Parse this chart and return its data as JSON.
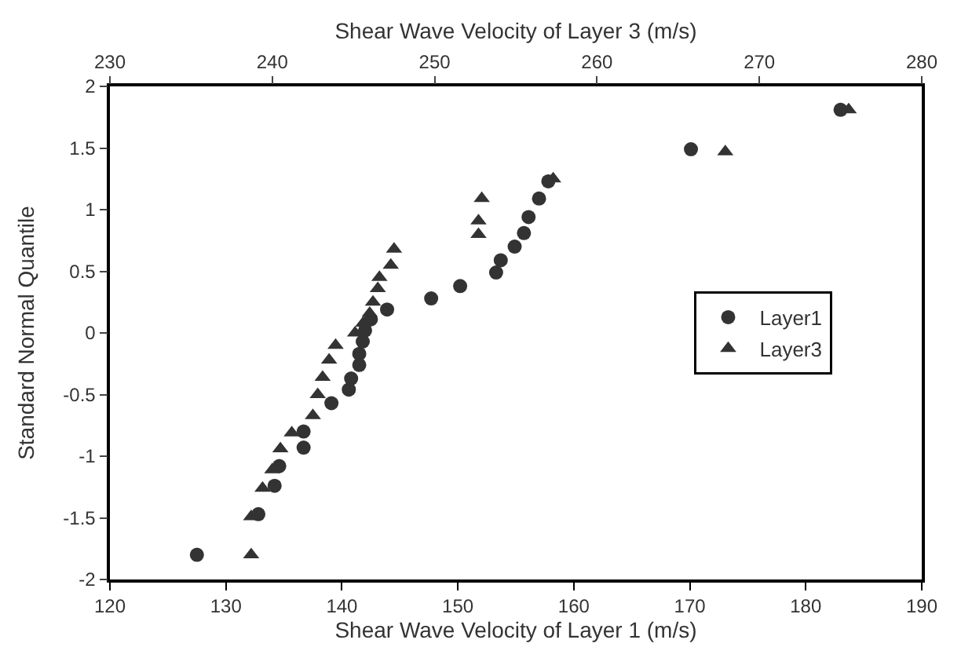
{
  "chart_data": {
    "type": "scatter",
    "xlabel": "Shear Wave Velocity of Layer 1 (m/s)",
    "x2label": "Shear Wave Velocity of Layer 3 (m/s)",
    "ylabel": "Standard Normal Quantile",
    "xlim": [
      120,
      190
    ],
    "xticks": [
      120,
      130,
      140,
      150,
      160,
      170,
      180,
      190
    ],
    "x2lim": [
      230,
      280
    ],
    "x2ticks": [
      230,
      240,
      250,
      260,
      270,
      280
    ],
    "ylim": [
      -2,
      2
    ],
    "yticks": [
      -2,
      -1.5,
      -1,
      -0.5,
      0,
      0.5,
      1,
      1.5,
      2
    ],
    "legend": "right",
    "series": [
      {
        "name": "Layer1",
        "color": "#333333",
        "marker": "circle",
        "x": [
          127.5,
          132.8,
          134.2,
          134.6,
          136.7,
          136.7,
          139.1,
          140.6,
          140.8,
          141.5,
          141.5,
          141.8,
          142.0,
          142.5,
          143.9,
          147.7,
          150.2,
          153.3,
          153.7,
          154.9,
          155.7,
          156.1,
          157.0,
          157.8,
          170.1,
          183.0
        ],
        "values": [
          -1.8,
          -1.47,
          -1.24,
          -1.08,
          -0.93,
          -0.8,
          -0.57,
          -0.46,
          -0.37,
          -0.26,
          -0.17,
          -0.07,
          0.02,
          0.11,
          0.19,
          0.28,
          0.38,
          0.49,
          0.59,
          0.7,
          0.81,
          0.94,
          1.09,
          1.23,
          1.49,
          1.81
        ]
      },
      {
        "name": "Layer3",
        "color": "#333333",
        "marker": "triangle",
        "axis": "x2",
        "x": [
          238.7,
          238.7,
          239.4,
          240.0,
          240.5,
          241.2,
          242.5,
          242.8,
          243.1,
          243.5,
          243.9,
          245.1,
          245.6,
          246.0,
          246.2,
          246.5,
          246.6,
          247.3,
          247.5,
          252.7,
          252.7,
          252.9,
          257.3,
          267.9,
          275.5
        ],
        "values": [
          -1.8,
          -1.49,
          -1.26,
          -1.11,
          -0.94,
          -0.81,
          -0.67,
          -0.5,
          -0.36,
          -0.22,
          -0.1,
          0.0,
          0.08,
          0.16,
          0.25,
          0.36,
          0.45,
          0.55,
          0.68,
          0.8,
          0.91,
          1.09,
          1.25,
          1.47,
          1.81
        ]
      }
    ]
  }
}
